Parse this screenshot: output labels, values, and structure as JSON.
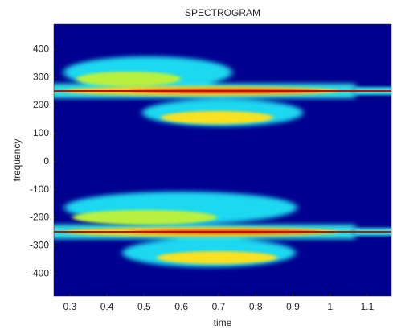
{
  "chart_data": {
    "type": "spectrogram",
    "title": "SPECTROGRAM",
    "xlabel": "time",
    "ylabel": "frequency",
    "xlim": [
      0.257,
      1.165
    ],
    "xticks": [
      0.3,
      0.4,
      0.5,
      0.6,
      0.7,
      0.8,
      0.9,
      1,
      1.1
    ],
    "ylim": [
      -480,
      490
    ],
    "yticks": [
      400,
      300,
      200,
      100,
      0,
      -100,
      -200,
      -300,
      -400
    ],
    "background": "#00008f"
  }
}
